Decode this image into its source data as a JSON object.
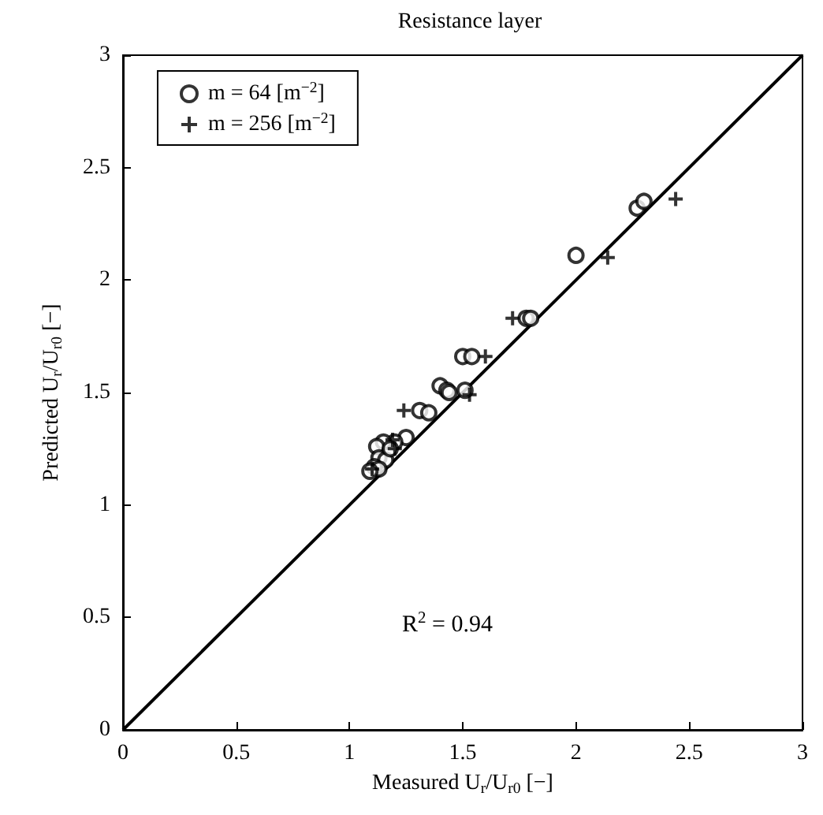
{
  "chart_data": {
    "type": "scatter",
    "title": "Resistance layer",
    "xlabel": "Measured U$_{r}$/U$_{r0}$ [−]",
    "ylabel": "Predicted U$_{r}$/U$_{r0}$ [−]",
    "annotations": [
      "R$^{2}$ = 0.94"
    ],
    "xlim": [
      0,
      3
    ],
    "ylim": [
      0,
      3
    ],
    "xticks": [
      0,
      0.5,
      1,
      1.5,
      2,
      2.5,
      3
    ],
    "yticks": [
      0,
      0.5,
      1,
      1.5,
      2,
      2.5,
      3
    ],
    "grid": false,
    "legend": "top left",
    "series": [
      {
        "name": "m = 64 [m$^{−2}$]",
        "color": "#000000",
        "marker": "circle",
        "x": [
          2.27,
          2.3,
          2.0,
          1.78,
          1.8,
          1.5,
          1.54,
          1.4,
          1.43,
          1.44,
          1.51,
          1.31,
          1.35,
          1.25,
          1.2,
          1.15,
          1.12,
          1.13,
          1.16,
          1.11,
          1.13,
          1.09,
          1.18
        ],
        "values": [
          2.32,
          2.35,
          2.11,
          1.83,
          1.83,
          1.66,
          1.66,
          1.53,
          1.51,
          1.5,
          1.51,
          1.42,
          1.41,
          1.3,
          1.28,
          1.28,
          1.26,
          1.21,
          1.2,
          1.17,
          1.16,
          1.15,
          1.25
        ]
      },
      {
        "name": "m = 256 [m$^{−2}$]",
        "color": "#000000",
        "marker": "cross",
        "x": [
          2.44,
          2.14,
          1.72,
          1.6,
          1.53,
          1.24,
          1.1,
          1.2,
          1.19
        ],
        "values": [
          2.36,
          2.1,
          1.83,
          1.66,
          1.49,
          1.42,
          1.16,
          1.25,
          1.29
        ]
      },
      {
        "type": "line",
        "color": "#000000",
        "marker": "none",
        "line_style": "solid",
        "x": [
          0,
          3
        ],
        "values": [
          0,
          3
        ]
      }
    ]
  }
}
